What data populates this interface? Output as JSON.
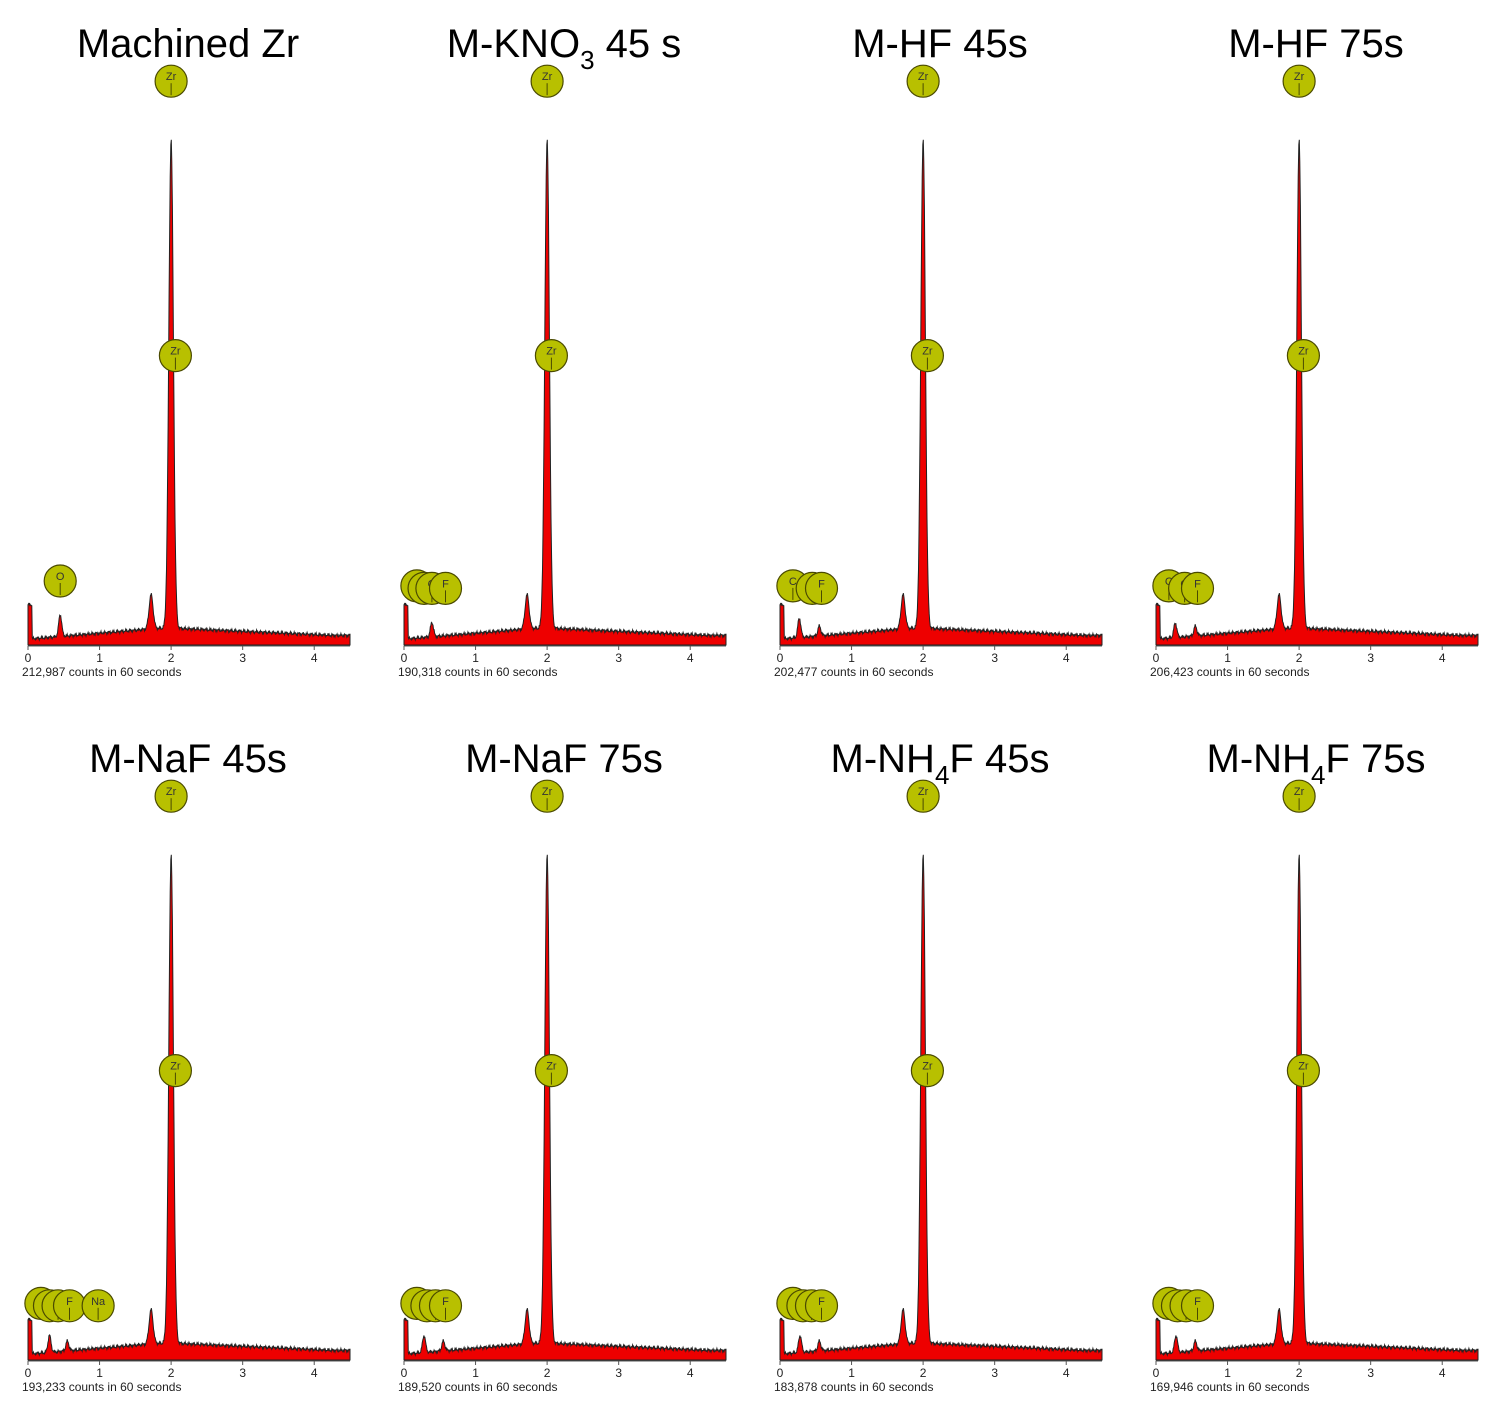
{
  "chart_data": [
    {
      "type": "area",
      "title_main": "Machined Zr",
      "title_sub": "",
      "title_tail": "",
      "counts_label": "212,987 counts in 60 seconds",
      "x_ticks": [
        0,
        1,
        2,
        3,
        4
      ],
      "xlim": [
        0,
        4.5
      ],
      "peaks": [
        {
          "x": 0.45,
          "y": 0.045,
          "w": 0.03
        },
        {
          "x": 1.72,
          "y": 0.07,
          "w": 0.04
        },
        {
          "x": 2.0,
          "y": 1.0,
          "w": 0.045
        }
      ],
      "markers": [
        {
          "label": "O",
          "x": 0.45,
          "level": 0.1
        },
        {
          "label": "Zr",
          "x": 2.0,
          "level": 1.12
        },
        {
          "label": "Zr",
          "x": 2.06,
          "level": 0.56
        }
      ]
    },
    {
      "type": "area",
      "title_main": "M-KNO",
      "title_sub": "3",
      "title_tail": " 45 s",
      "counts_label": "190,318 counts in 60 seconds",
      "x_ticks": [
        0,
        1,
        2,
        3,
        4
      ],
      "xlim": [
        0,
        4.5
      ],
      "peaks": [
        {
          "x": 0.39,
          "y": 0.03,
          "w": 0.03
        },
        {
          "x": 1.72,
          "y": 0.07,
          "w": 0.04
        },
        {
          "x": 2.0,
          "y": 1.0,
          "w": 0.045
        }
      ],
      "markers": [
        {
          "label": "C",
          "x": 0.18,
          "level": 0.09
        },
        {
          "label": "N",
          "x": 0.28,
          "level": 0.085
        },
        {
          "label": "O",
          "x": 0.39,
          "level": 0.085
        },
        {
          "label": "F",
          "x": 0.58,
          "level": 0.085
        },
        {
          "label": "Zr",
          "x": 2.0,
          "level": 1.12
        },
        {
          "label": "Zr",
          "x": 2.06,
          "level": 0.56
        }
      ]
    },
    {
      "type": "area",
      "title_main": "M-HF 45s",
      "title_sub": "",
      "title_tail": "",
      "counts_label": "202,477 counts in 60 seconds",
      "x_ticks": [
        0,
        1,
        2,
        3,
        4
      ],
      "xlim": [
        0,
        4.5
      ],
      "peaks": [
        {
          "x": 0.27,
          "y": 0.04,
          "w": 0.03
        },
        {
          "x": 0.55,
          "y": 0.02,
          "w": 0.03
        },
        {
          "x": 1.72,
          "y": 0.07,
          "w": 0.04
        },
        {
          "x": 2.0,
          "y": 1.0,
          "w": 0.045
        }
      ],
      "markers": [
        {
          "label": "C",
          "x": 0.18,
          "level": 0.09
        },
        {
          "label": "O",
          "x": 0.45,
          "level": 0.085
        },
        {
          "label": "F",
          "x": 0.58,
          "level": 0.085
        },
        {
          "label": "Zr",
          "x": 2.0,
          "level": 1.12
        },
        {
          "label": "Zr",
          "x": 2.06,
          "level": 0.56
        }
      ]
    },
    {
      "type": "area",
      "title_main": "M-HF 75s",
      "title_sub": "",
      "title_tail": "",
      "counts_label": "206,423 counts in 60 seconds",
      "x_ticks": [
        0,
        1,
        2,
        3,
        4
      ],
      "xlim": [
        0,
        4.5
      ],
      "peaks": [
        {
          "x": 0.27,
          "y": 0.03,
          "w": 0.03
        },
        {
          "x": 0.55,
          "y": 0.02,
          "w": 0.03
        },
        {
          "x": 1.72,
          "y": 0.07,
          "w": 0.04
        },
        {
          "x": 2.0,
          "y": 1.0,
          "w": 0.045
        }
      ],
      "markers": [
        {
          "label": "C",
          "x": 0.18,
          "level": 0.09
        },
        {
          "label": "O",
          "x": 0.4,
          "level": 0.085
        },
        {
          "label": "F",
          "x": 0.58,
          "level": 0.085
        },
        {
          "label": "Zr",
          "x": 2.0,
          "level": 1.12
        },
        {
          "label": "Zr",
          "x": 2.06,
          "level": 0.56
        }
      ]
    },
    {
      "type": "area",
      "title_main": "M-NaF 45s",
      "title_sub": "",
      "title_tail": "",
      "counts_label": "193,233 counts in 60 seconds",
      "x_ticks": [
        0,
        1,
        2,
        3,
        4
      ],
      "xlim": [
        0,
        4.5
      ],
      "peaks": [
        {
          "x": 0.3,
          "y": 0.035,
          "w": 0.03
        },
        {
          "x": 0.55,
          "y": 0.02,
          "w": 0.03
        },
        {
          "x": 1.72,
          "y": 0.07,
          "w": 0.04
        },
        {
          "x": 2.0,
          "y": 1.0,
          "w": 0.045
        }
      ],
      "markers": [
        {
          "label": "C",
          "x": 0.18,
          "level": 0.085
        },
        {
          "label": "N",
          "x": 0.3,
          "level": 0.08
        },
        {
          "label": "O",
          "x": 0.42,
          "level": 0.08
        },
        {
          "label": "F",
          "x": 0.58,
          "level": 0.08
        },
        {
          "label": "Na",
          "x": 0.98,
          "level": 0.08
        },
        {
          "label": "Zr",
          "x": 2.0,
          "level": 1.12
        },
        {
          "label": "Zr",
          "x": 2.06,
          "level": 0.56
        }
      ]
    },
    {
      "type": "area",
      "title_main": "M-NaF 75s",
      "title_sub": "",
      "title_tail": "",
      "counts_label": "189,520 counts in 60 seconds",
      "x_ticks": [
        0,
        1,
        2,
        3,
        4
      ],
      "xlim": [
        0,
        4.5
      ],
      "peaks": [
        {
          "x": 0.28,
          "y": 0.035,
          "w": 0.03
        },
        {
          "x": 0.55,
          "y": 0.02,
          "w": 0.03
        },
        {
          "x": 1.72,
          "y": 0.07,
          "w": 0.04
        },
        {
          "x": 2.0,
          "y": 1.0,
          "w": 0.045
        }
      ],
      "markers": [
        {
          "label": "C",
          "x": 0.18,
          "level": 0.085
        },
        {
          "label": "N",
          "x": 0.32,
          "level": 0.08
        },
        {
          "label": "O",
          "x": 0.44,
          "level": 0.08
        },
        {
          "label": "F",
          "x": 0.58,
          "level": 0.08
        },
        {
          "label": "Zr",
          "x": 2.0,
          "level": 1.12
        },
        {
          "label": "Zr",
          "x": 2.06,
          "level": 0.56
        }
      ]
    },
    {
      "type": "area",
      "title_main": "M-NH",
      "title_sub": "4",
      "title_tail": "F 45s",
      "counts_label": "183,878 counts in 60 seconds",
      "x_ticks": [
        0,
        1,
        2,
        3,
        4
      ],
      "xlim": [
        0,
        4.5
      ],
      "peaks": [
        {
          "x": 0.28,
          "y": 0.035,
          "w": 0.03
        },
        {
          "x": 0.55,
          "y": 0.02,
          "w": 0.03
        },
        {
          "x": 1.72,
          "y": 0.07,
          "w": 0.04
        },
        {
          "x": 2.0,
          "y": 1.0,
          "w": 0.045
        }
      ],
      "markers": [
        {
          "label": "C",
          "x": 0.18,
          "level": 0.085
        },
        {
          "label": "N",
          "x": 0.32,
          "level": 0.08
        },
        {
          "label": "O",
          "x": 0.44,
          "level": 0.08
        },
        {
          "label": "F",
          "x": 0.58,
          "level": 0.08
        },
        {
          "label": "Zr",
          "x": 2.0,
          "level": 1.12
        },
        {
          "label": "Zr",
          "x": 2.06,
          "level": 0.56
        }
      ]
    },
    {
      "type": "area",
      "title_main": "M-NH",
      "title_sub": "4",
      "title_tail": "F 75s",
      "counts_label": "169,946 counts in 60 seconds",
      "x_ticks": [
        0,
        1,
        2,
        3,
        4
      ],
      "xlim": [
        0,
        4.5
      ],
      "peaks": [
        {
          "x": 0.28,
          "y": 0.035,
          "w": 0.03
        },
        {
          "x": 0.55,
          "y": 0.02,
          "w": 0.03
        },
        {
          "x": 1.72,
          "y": 0.07,
          "w": 0.04
        },
        {
          "x": 2.0,
          "y": 1.0,
          "w": 0.045
        }
      ],
      "markers": [
        {
          "label": "C",
          "x": 0.18,
          "level": 0.085
        },
        {
          "label": "N",
          "x": 0.3,
          "level": 0.08
        },
        {
          "label": "O",
          "x": 0.42,
          "level": 0.08
        },
        {
          "label": "F",
          "x": 0.58,
          "level": 0.08
        },
        {
          "label": "Zr",
          "x": 2.0,
          "level": 1.12
        },
        {
          "label": "Zr",
          "x": 2.06,
          "level": 0.56
        }
      ]
    }
  ],
  "colors": {
    "fill": "#ee0000",
    "outline": "#222222",
    "marker_fill": "#b8c000",
    "marker_stroke": "#4a4a00"
  }
}
